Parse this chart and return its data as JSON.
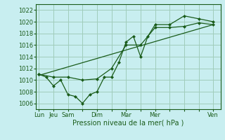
{
  "background_color": "#c8eef0",
  "grid_color": "#a0ccbb",
  "line_color": "#1a5c1a",
  "marker_color": "#1a5c1a",
  "xlabel": "Pression niveau de la mer( hPa )",
  "xlabel_fontsize": 7,
  "ylim": [
    1005.0,
    1023.0
  ],
  "yticks": [
    1006,
    1008,
    1010,
    1012,
    1014,
    1016,
    1018,
    1020,
    1022
  ],
  "tick_fontsize": 6,
  "xtick_labels": [
    "Lun",
    "Jeu",
    "Sam",
    "",
    "Dim",
    "",
    "Mar",
    "",
    "Mer",
    "",
    "",
    "",
    "Ven"
  ],
  "xtick_positions": [
    0,
    1,
    2,
    3,
    4,
    5,
    6,
    7,
    8,
    9,
    10,
    11,
    12
  ],
  "xlim": [
    -0.2,
    12.5
  ],
  "series1_x": [
    0,
    0.5,
    1.0,
    1.5,
    2.0,
    2.5,
    3.0,
    3.5,
    4.0,
    4.5,
    5.0,
    5.5,
    6.0,
    6.5,
    7.0,
    7.5,
    8.0,
    9.0,
    10.0,
    11.0,
    12.0
  ],
  "series1_y": [
    1011,
    1010.5,
    1009,
    1010,
    1007.5,
    1007.2,
    1006.0,
    1007.5,
    1008.0,
    1010.5,
    1010.5,
    1013.0,
    1016.5,
    1017.5,
    1014.0,
    1017.5,
    1019.5,
    1019.5,
    1021.0,
    1020.5,
    1020.0
  ],
  "series2_x": [
    0,
    1,
    2,
    3,
    4,
    5,
    6,
    7,
    8,
    9,
    10,
    11,
    12
  ],
  "series2_y": [
    1011,
    1010.5,
    1010.5,
    1010.0,
    1010.2,
    1012.0,
    1016.0,
    1016.0,
    1019.0,
    1019.0,
    1019.2,
    1019.8,
    1019.5
  ],
  "series3_x": [
    0,
    12
  ],
  "series3_y": [
    1010.8,
    1019.5
  ]
}
